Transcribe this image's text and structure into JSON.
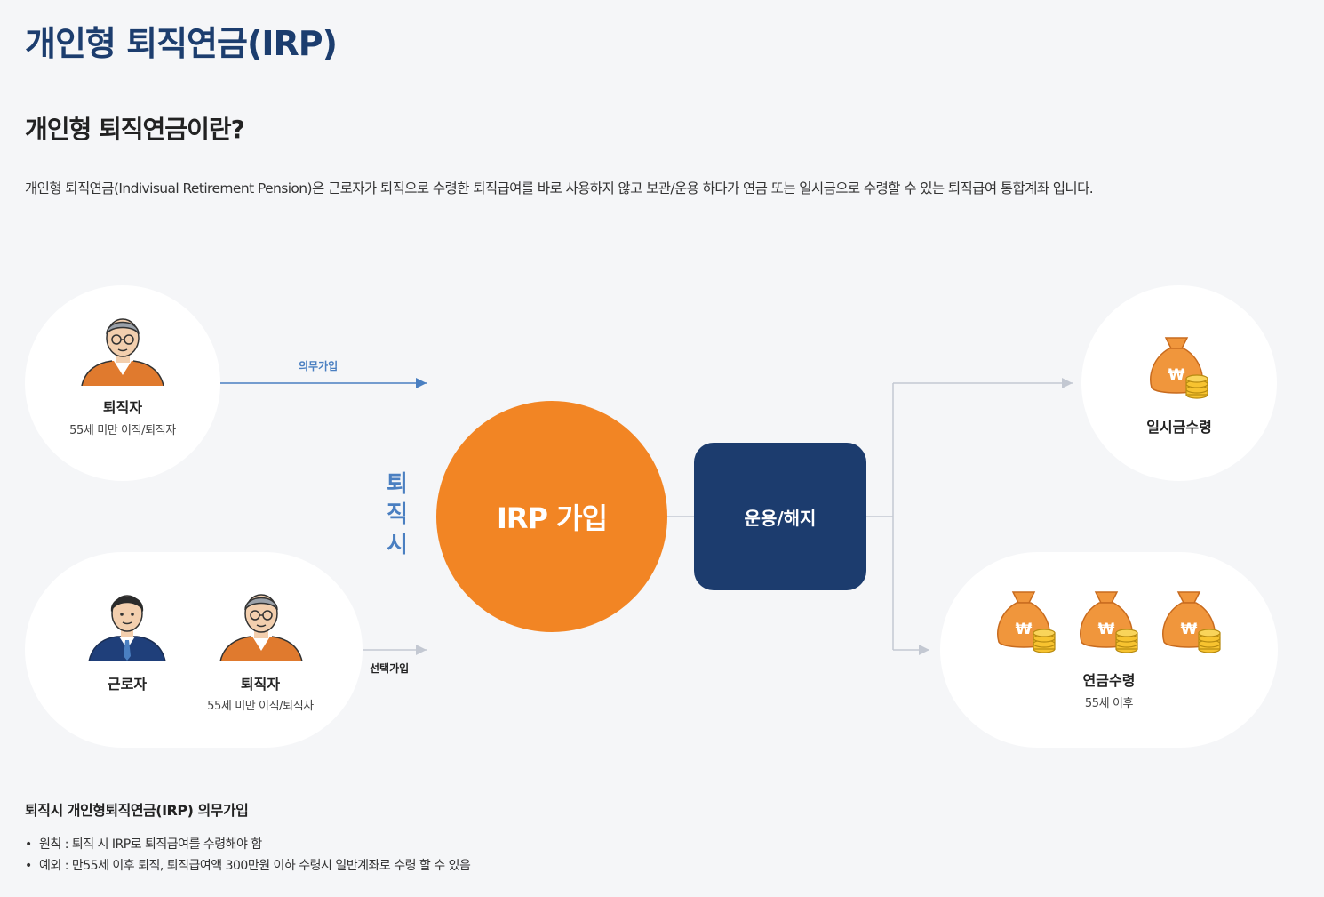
{
  "header": {
    "page_title": "개인형 퇴직연금(IRP)",
    "section_title": "개인형 퇴직연금이란?",
    "intro": "개인형 퇴직연금(Indivisual Retirement Pension)은 근로자가 퇴직으로 수령한 퇴직급여를 바로 사용하지 않고 보관/운용 하다가 연금 또는 일시금으로 수령할 수 있는 퇴직급여 통합계좌 입니다."
  },
  "diagram": {
    "mandatory": {
      "person_label": "퇴직자",
      "person_sub": "55세 미만 이직/퇴직자",
      "arrow_label": "의무가입"
    },
    "optional": {
      "worker_label": "근로자",
      "retiree_label": "퇴직자",
      "retiree_sub": "55세 미만 이직/퇴직자",
      "arrow_label": "선택가입"
    },
    "vertical_chars": [
      "퇴",
      "직",
      "시"
    ],
    "center_label": "IRP 가입",
    "ops_label": "운용/해지",
    "lump_sum": {
      "label": "일시금수령",
      "coin_symbol": "₩"
    },
    "pension": {
      "label": "연금수령",
      "sub": "55세 이후",
      "coin_symbol": "₩"
    },
    "colors": {
      "navy": "#1c3c6e",
      "orange": "#f28524",
      "blue_accent": "#4a7fc1",
      "bag_orange": "#f0963c",
      "coin_yellow": "#f7c330"
    }
  },
  "notes": {
    "title": "퇴직시 개인형퇴직연금(IRP) 의무가입",
    "items": [
      "원칙 : 퇴직 시 IRP로 퇴직급여를 수령해야 함",
      "예외 : 만55세 이후 퇴직, 퇴직급여액 300만원 이하 수령시 일반계좌로 수령 할 수 있음"
    ]
  }
}
